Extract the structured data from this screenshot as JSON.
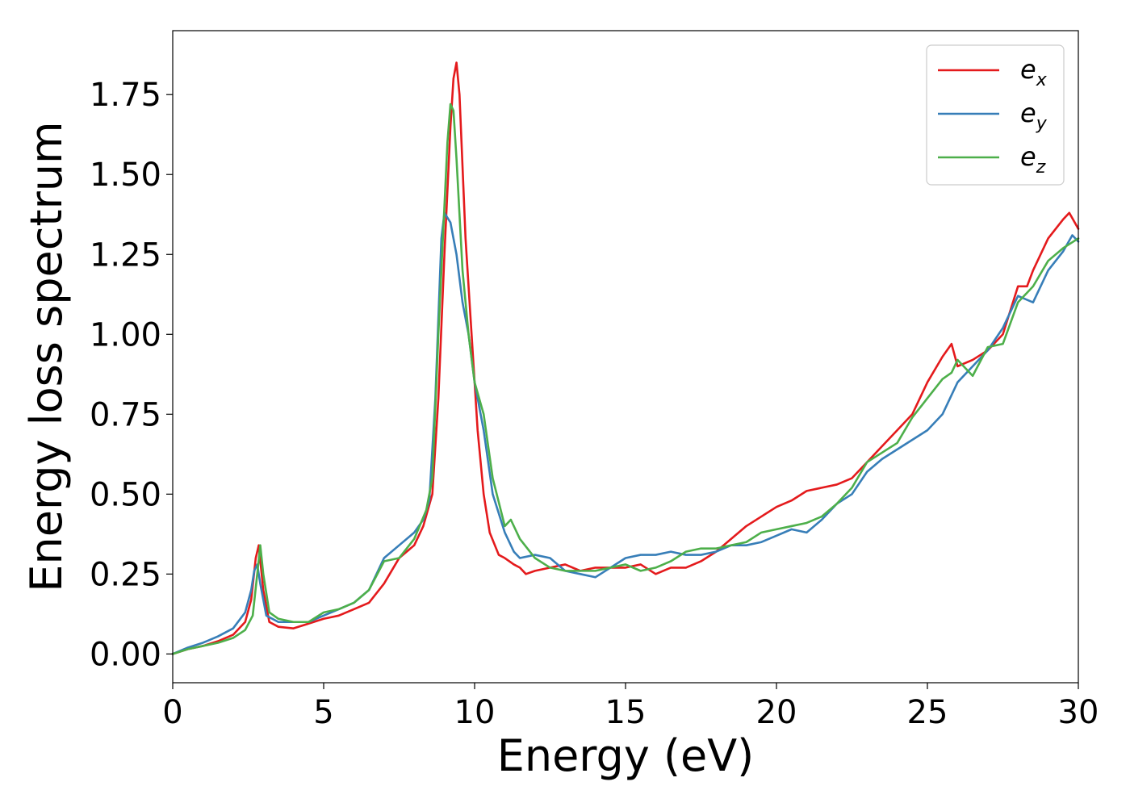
{
  "chart_data": {
    "type": "line",
    "xlabel": "Energy (eV)",
    "ylabel": "Energy loss spectrum",
    "xlim": [
      0,
      30
    ],
    "ylim": [
      -0.09,
      1.95
    ],
    "xticks": [
      0,
      5,
      10,
      15,
      20,
      25,
      30
    ],
    "xtick_labels": [
      "0",
      "5",
      "10",
      "15",
      "20",
      "25",
      "30"
    ],
    "yticks": [
      0,
      0.25,
      0.5,
      0.75,
      1.0,
      1.25,
      1.5,
      1.75
    ],
    "ytick_labels": [
      "0.00",
      "0.25",
      "0.50",
      "0.75",
      "1.00",
      "1.25",
      "1.50",
      "1.75"
    ],
    "grid": false,
    "legend_position": "top-right",
    "series": [
      {
        "name": "e_x",
        "legend_base": "e",
        "legend_sub": "x",
        "color": "#e41a1c",
        "x": [
          0,
          0.5,
          1,
          1.5,
          2,
          2.4,
          2.6,
          2.75,
          2.85,
          3.0,
          3.2,
          3.5,
          4,
          4.5,
          5,
          5.5,
          6,
          6.5,
          7,
          7.5,
          8,
          8.3,
          8.6,
          8.8,
          9.0,
          9.2,
          9.3,
          9.4,
          9.5,
          9.7,
          9.9,
          10.1,
          10.3,
          10.5,
          10.8,
          11,
          11.3,
          11.5,
          11.7,
          12,
          12.5,
          13,
          13.5,
          14,
          14.5,
          15,
          15.5,
          16,
          16.5,
          17,
          17.5,
          18,
          18.5,
          19,
          19.5,
          20,
          20.5,
          21,
          21.5,
          22,
          22.5,
          23,
          23.5,
          24,
          24.5,
          25,
          25.5,
          25.8,
          26,
          26.5,
          27,
          27.5,
          28,
          28.3,
          28.5,
          29,
          29.5,
          29.7,
          30
        ],
        "y": [
          0.0,
          0.015,
          0.025,
          0.04,
          0.06,
          0.1,
          0.17,
          0.3,
          0.34,
          0.2,
          0.1,
          0.085,
          0.08,
          0.095,
          0.11,
          0.12,
          0.14,
          0.16,
          0.22,
          0.3,
          0.34,
          0.4,
          0.5,
          0.8,
          1.25,
          1.65,
          1.8,
          1.85,
          1.75,
          1.3,
          1.0,
          0.7,
          0.5,
          0.38,
          0.31,
          0.3,
          0.28,
          0.27,
          0.25,
          0.26,
          0.27,
          0.28,
          0.26,
          0.27,
          0.27,
          0.27,
          0.28,
          0.25,
          0.27,
          0.27,
          0.29,
          0.32,
          0.36,
          0.4,
          0.43,
          0.46,
          0.48,
          0.51,
          0.52,
          0.53,
          0.55,
          0.6,
          0.65,
          0.7,
          0.75,
          0.85,
          0.93,
          0.97,
          0.9,
          0.92,
          0.95,
          1.0,
          1.15,
          1.15,
          1.2,
          1.3,
          1.36,
          1.38,
          1.33
        ]
      },
      {
        "name": "e_y",
        "legend_base": "e",
        "legend_sub": "y",
        "color": "#377eb8",
        "x": [
          0,
          0.5,
          1,
          1.5,
          2,
          2.4,
          2.6,
          2.7,
          2.8,
          2.9,
          3.1,
          3.5,
          4,
          4.5,
          5,
          5.5,
          6,
          6.5,
          7,
          7.5,
          8,
          8.3,
          8.5,
          8.7,
          8.9,
          9.0,
          9.2,
          9.4,
          9.6,
          9.8,
          10,
          10.3,
          10.6,
          11,
          11.3,
          11.5,
          12,
          12.5,
          13,
          13.5,
          14,
          14.5,
          15,
          15.5,
          16,
          16.5,
          17,
          17.5,
          18,
          18.5,
          19,
          19.5,
          20,
          20.5,
          21,
          21.5,
          22,
          22.5,
          23,
          23.5,
          24,
          24.5,
          25,
          25.5,
          26,
          26.5,
          27,
          27.5,
          28,
          28.5,
          29,
          29.5,
          29.8,
          30
        ],
        "y": [
          0.0,
          0.02,
          0.035,
          0.055,
          0.08,
          0.13,
          0.2,
          0.26,
          0.28,
          0.22,
          0.12,
          0.1,
          0.1,
          0.1,
          0.12,
          0.14,
          0.16,
          0.2,
          0.3,
          0.34,
          0.38,
          0.42,
          0.48,
          0.8,
          1.3,
          1.38,
          1.35,
          1.25,
          1.1,
          1.0,
          0.85,
          0.7,
          0.5,
          0.38,
          0.32,
          0.3,
          0.31,
          0.3,
          0.26,
          0.25,
          0.24,
          0.27,
          0.3,
          0.31,
          0.31,
          0.32,
          0.31,
          0.31,
          0.32,
          0.34,
          0.34,
          0.35,
          0.37,
          0.39,
          0.38,
          0.42,
          0.47,
          0.5,
          0.57,
          0.61,
          0.64,
          0.67,
          0.7,
          0.75,
          0.85,
          0.9,
          0.95,
          1.02,
          1.12,
          1.1,
          1.2,
          1.26,
          1.31,
          1.29
        ]
      },
      {
        "name": "e_z",
        "legend_base": "e",
        "legend_sub": "z",
        "color": "#4daf4a",
        "x": [
          0,
          0.5,
          1,
          1.5,
          2,
          2.4,
          2.65,
          2.8,
          2.9,
          3.0,
          3.2,
          3.5,
          4,
          4.5,
          5,
          5.5,
          6,
          6.5,
          7,
          7.5,
          8,
          8.4,
          8.6,
          8.8,
          9.0,
          9.1,
          9.2,
          9.3,
          9.4,
          9.6,
          9.8,
          10,
          10.3,
          10.6,
          11,
          11.2,
          11.5,
          12,
          12.5,
          13,
          13.5,
          14,
          14.5,
          15,
          15.5,
          16,
          16.5,
          17,
          17.5,
          18,
          18.5,
          19,
          19.5,
          20,
          20.5,
          21,
          21.5,
          22,
          22.5,
          23,
          23.5,
          24,
          24.5,
          25,
          25.5,
          25.8,
          26,
          26.5,
          27,
          27.5,
          28,
          28.5,
          29,
          29.5,
          30
        ],
        "y": [
          0.0,
          0.015,
          0.025,
          0.035,
          0.05,
          0.075,
          0.12,
          0.25,
          0.34,
          0.25,
          0.13,
          0.11,
          0.1,
          0.1,
          0.13,
          0.14,
          0.16,
          0.2,
          0.29,
          0.3,
          0.36,
          0.45,
          0.55,
          1.0,
          1.4,
          1.6,
          1.72,
          1.7,
          1.55,
          1.2,
          1.0,
          0.85,
          0.75,
          0.55,
          0.4,
          0.42,
          0.36,
          0.3,
          0.27,
          0.26,
          0.26,
          0.26,
          0.27,
          0.28,
          0.26,
          0.27,
          0.29,
          0.32,
          0.33,
          0.33,
          0.34,
          0.35,
          0.38,
          0.39,
          0.4,
          0.41,
          0.43,
          0.47,
          0.52,
          0.6,
          0.63,
          0.66,
          0.74,
          0.8,
          0.86,
          0.88,
          0.92,
          0.87,
          0.96,
          0.97,
          1.1,
          1.15,
          1.23,
          1.27,
          1.3
        ]
      }
    ]
  }
}
